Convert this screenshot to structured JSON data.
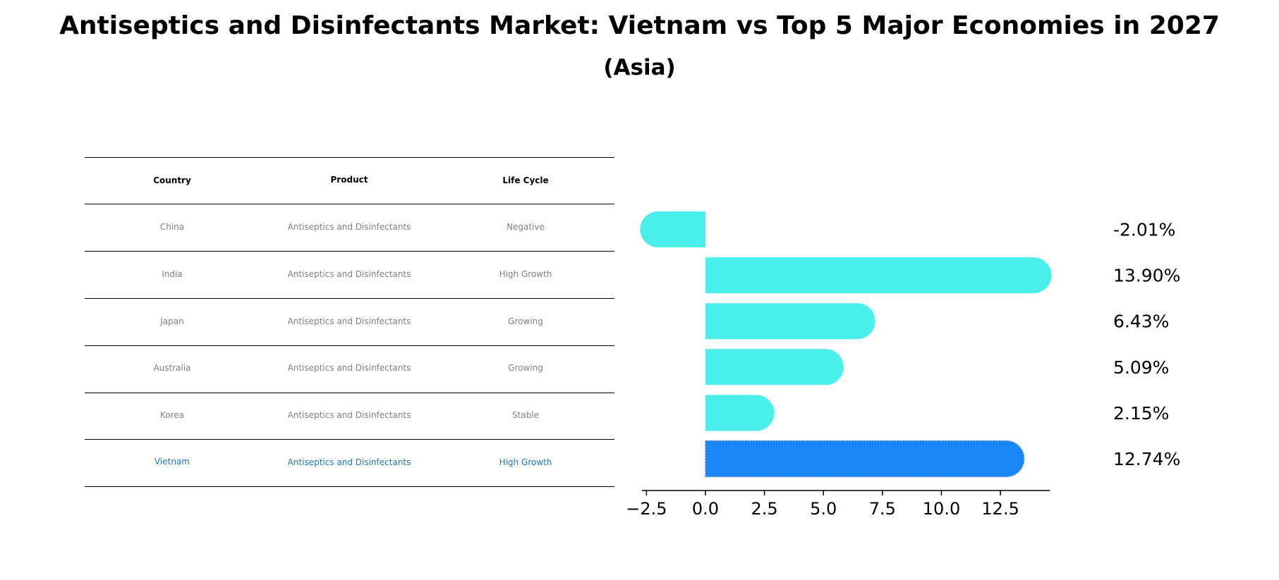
{
  "title": "Antiseptics and Disinfectants Market: Vietnam vs Top 5 Major Economies in 2027",
  "subtitle": "(Asia)",
  "table": {
    "headers": [
      "Country",
      "Product",
      "Life Cycle"
    ],
    "rows": [
      {
        "country": "China",
        "product": "Antiseptics and Disinfectants",
        "life_cycle": "Negative"
      },
      {
        "country": "India",
        "product": "Antiseptics and Disinfectants",
        "life_cycle": "High Growth"
      },
      {
        "country": "Japan",
        "product": "Antiseptics and Disinfectants",
        "life_cycle": "Growing"
      },
      {
        "country": "Australia",
        "product": "Antiseptics and Disinfectants",
        "life_cycle": "Growing"
      },
      {
        "country": "Korea",
        "product": "Antiseptics and Disinfectants",
        "life_cycle": "Stable"
      },
      {
        "country": "Vietnam",
        "product": "Antiseptics and Disinfectants",
        "life_cycle": "High Growth"
      }
    ]
  },
  "chart_data": {
    "type": "bar",
    "orientation": "horizontal",
    "categories": [
      "China",
      "India",
      "Japan",
      "Australia",
      "Korea",
      "Vietnam"
    ],
    "values": [
      -2.01,
      13.9,
      6.43,
      5.09,
      2.15,
      12.74
    ],
    "value_labels": [
      "-2.01%",
      "13.90%",
      "6.43%",
      "5.09%",
      "2.15%",
      "12.74%"
    ],
    "highlight": "Vietnam",
    "xticks": [
      -2.5,
      0.0,
      2.5,
      5.0,
      7.5,
      10.0,
      12.5
    ],
    "xtick_labels": [
      "−2.5",
      "0.0",
      "2.5",
      "5.0",
      "7.5",
      "10.0",
      "12.5"
    ],
    "xlim": [
      -2.7,
      14.6
    ],
    "colors": {
      "bar": "#4aeeea",
      "highlight": "#1a86f5"
    }
  }
}
